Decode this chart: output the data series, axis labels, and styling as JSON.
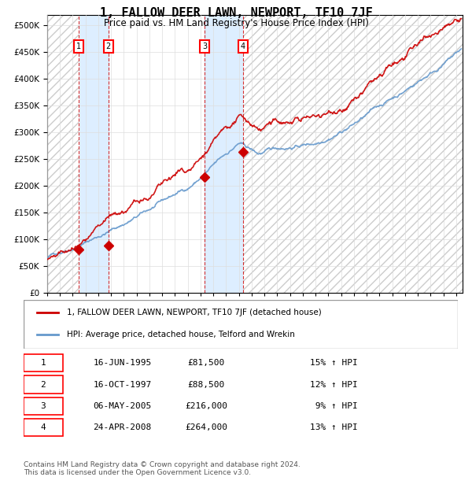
{
  "title": "1, FALLOW DEER LAWN, NEWPORT, TF10 7JF",
  "subtitle": "Price paid vs. HM Land Registry's House Price Index (HPI)",
  "purchases": [
    {
      "num": 1,
      "date_str": "16-JUN-1995",
      "date_x": 1995.46,
      "price": 81500,
      "pct": "15%",
      "label": "1"
    },
    {
      "num": 2,
      "date_str": "16-OCT-1997",
      "date_x": 1997.79,
      "price": 88500,
      "pct": "12%",
      "label": "2"
    },
    {
      "num": 3,
      "date_str": "06-MAY-2005",
      "date_x": 2005.34,
      "price": 216000,
      "pct": "9%",
      "label": "3"
    },
    {
      "num": 4,
      "date_str": "24-APR-2008",
      "date_x": 2008.31,
      "price": 264000,
      "pct": "13%",
      "label": "4"
    }
  ],
  "hpi_color": "#6699cc",
  "price_color": "#cc0000",
  "marker_color": "#cc0000",
  "dashed_color": "#cc0000",
  "shade_color": "#ddeeff",
  "hatch_color": "#aaaaaa",
  "ylim": [
    0,
    520000
  ],
  "yticks": [
    0,
    50000,
    100000,
    150000,
    200000,
    250000,
    300000,
    350000,
    400000,
    450000,
    500000
  ],
  "xlim_start": 1993.0,
  "xlim_end": 2025.5,
  "footnote": "Contains HM Land Registry data © Crown copyright and database right 2024.\nThis data is licensed under the Open Government Licence v3.0.",
  "legend_line1": "1, FALLOW DEER LAWN, NEWPORT, TF10 7JF (detached house)",
  "legend_line2": "HPI: Average price, detached house, Telford and Wrekin"
}
